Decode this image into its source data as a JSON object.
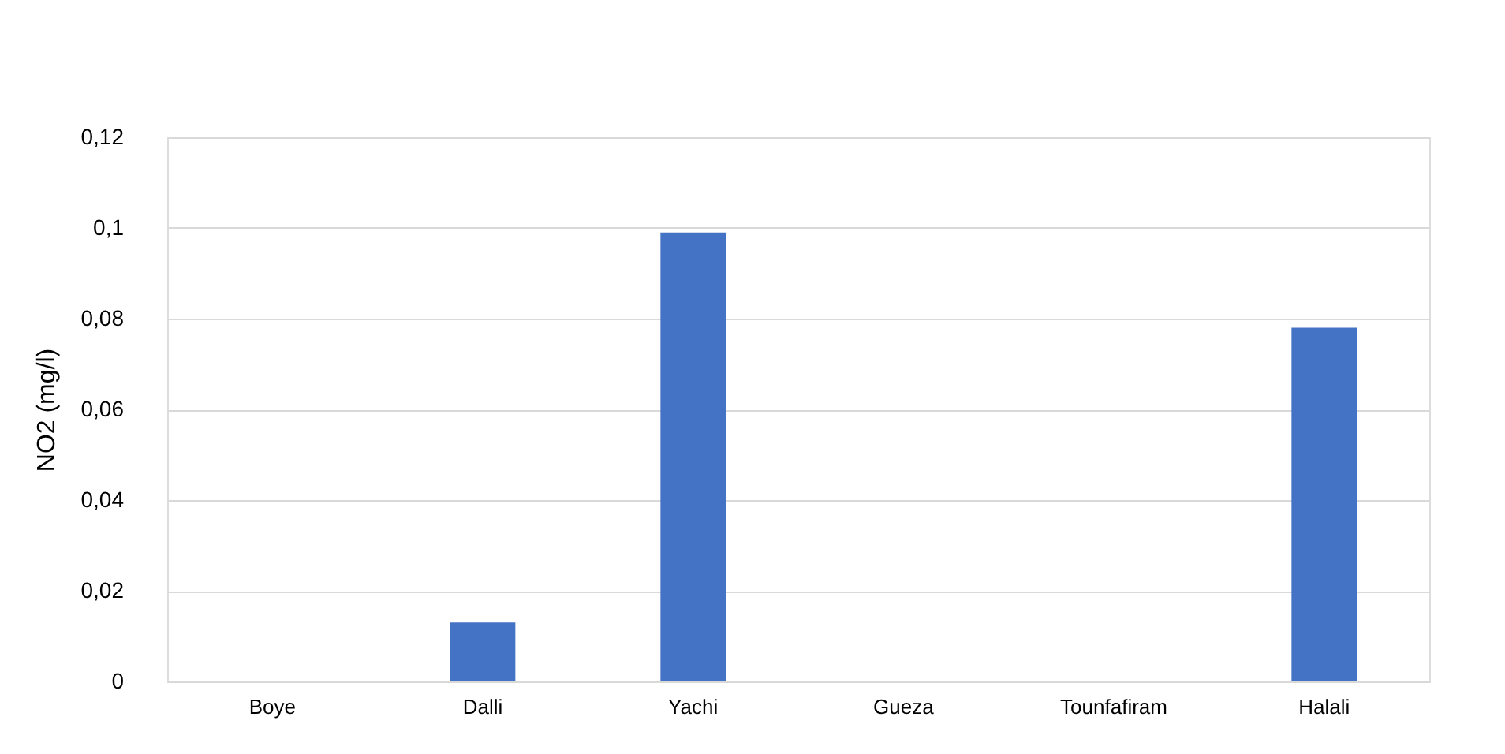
{
  "chart_data": {
    "type": "bar",
    "ylabel": "NO2 (mg/l)",
    "categories": [
      "Boye",
      "Dalli",
      "Yachi",
      "Gueza",
      "Tounfafiram",
      "Halali"
    ],
    "values": [
      0,
      0.013,
      0.099,
      0,
      0,
      0.078
    ],
    "color": "#4472c4",
    "ylim": [
      0,
      0.12
    ],
    "yticks": [
      0,
      {
        "value": 0.02,
        "label": "0,02"
      },
      {
        "value": 0.04,
        "label": "0,04"
      },
      {
        "value": 0.06,
        "label": "0,06"
      },
      {
        "value": 0.08,
        "label": "0,08"
      },
      {
        "value": 0.1,
        "label": "0,1"
      },
      {
        "value": 0.12,
        "label": "0,12"
      }
    ],
    "grid": "y"
  }
}
